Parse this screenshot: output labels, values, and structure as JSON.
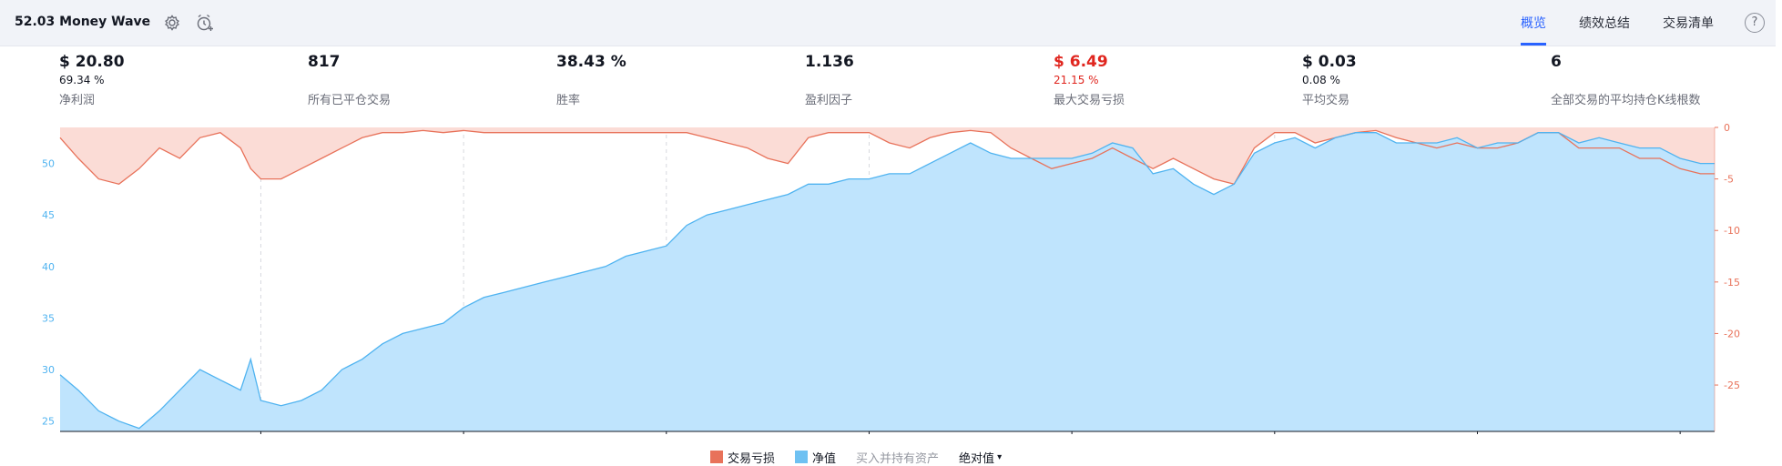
{
  "header": {
    "title": "52.03 Money Wave",
    "tabs": [
      "概览",
      "绩效总结",
      "交易清单"
    ],
    "active_tab": 0
  },
  "stats": [
    {
      "value": "$ 20.80",
      "sub": "69.34 %",
      "label": "净利润",
      "red": false
    },
    {
      "value": "817",
      "sub": "",
      "label": "所有已平仓交易",
      "red": false
    },
    {
      "value": "38.43 %",
      "sub": "",
      "label": "胜率",
      "red": false
    },
    {
      "value": "1.136",
      "sub": "",
      "label": "盈利因子",
      "red": false
    },
    {
      "value": "$ 6.49",
      "sub": "21.15 %",
      "label": "最大交易亏损",
      "red": true
    },
    {
      "value": "$ 0.03",
      "sub": "0.08 %",
      "label": "平均交易",
      "red": false
    },
    {
      "value": "6",
      "sub": "",
      "label": "全部交易的平均持仓K线根数",
      "red": false
    }
  ],
  "legend": {
    "drawdown": "交易亏损",
    "equity": "净值",
    "buyhold": "买入并持有资产",
    "mode": "绝对值"
  },
  "colors": {
    "accent": "#2962ff",
    "equity_line": "#4fb3f0",
    "equity_fill": "#bfe4fd",
    "drawdown_line": "#e8725a",
    "drawdown_fill": "#fbdcd6",
    "negative": "#e0261f"
  },
  "chart_data": {
    "type": "area",
    "x_ticks": [
      100,
      200,
      300,
      400,
      500,
      600,
      700,
      800
    ],
    "xlim": [
      1,
      817
    ],
    "left_axis": {
      "ticks": [
        25,
        30,
        35,
        40,
        45,
        50
      ],
      "ylim": [
        24,
        53.5
      ]
    },
    "right_axis": {
      "ticks": [
        0,
        -5,
        -10,
        -15,
        -20,
        -25
      ],
      "ylim": [
        -29.5,
        0
      ]
    },
    "series": [
      {
        "name": "净值",
        "axis": "left",
        "x": [
          1,
          10,
          20,
          30,
          40,
          50,
          60,
          70,
          80,
          90,
          95,
          100,
          110,
          120,
          130,
          140,
          150,
          160,
          170,
          180,
          190,
          200,
          210,
          220,
          230,
          240,
          250,
          260,
          270,
          280,
          290,
          300,
          310,
          320,
          330,
          340,
          350,
          360,
          370,
          380,
          390,
          400,
          410,
          420,
          430,
          440,
          450,
          460,
          470,
          480,
          490,
          500,
          510,
          520,
          530,
          540,
          550,
          560,
          570,
          580,
          590,
          600,
          610,
          620,
          630,
          640,
          650,
          660,
          670,
          680,
          690,
          700,
          710,
          720,
          730,
          740,
          750,
          760,
          770,
          780,
          790,
          800,
          810,
          817
        ],
        "values": [
          29.5,
          28,
          26,
          25,
          24.3,
          26,
          28,
          30,
          29,
          28,
          31,
          27,
          26.5,
          27,
          28,
          30,
          31,
          32.5,
          33.5,
          34,
          34.5,
          36,
          37,
          37.5,
          38,
          38.5,
          39,
          39.5,
          40,
          41,
          41.5,
          42,
          44,
          45,
          45.5,
          46,
          46.5,
          47,
          48,
          48,
          48.5,
          48.5,
          49,
          49,
          50,
          51,
          52,
          51,
          50.5,
          50.5,
          50.5,
          50.5,
          51,
          52,
          51.5,
          49,
          49.5,
          48,
          47,
          48,
          51,
          52,
          52.5,
          51.5,
          52.5,
          53,
          53,
          52,
          52,
          52,
          52.5,
          51.5,
          52,
          52,
          53,
          53,
          52,
          52.5,
          52,
          51.5,
          51.5,
          50.5,
          50,
          50
        ]
      },
      {
        "name": "交易亏损",
        "axis": "right",
        "x": [
          1,
          10,
          20,
          30,
          40,
          50,
          60,
          70,
          80,
          90,
          95,
          100,
          110,
          120,
          130,
          140,
          150,
          160,
          170,
          180,
          190,
          200,
          210,
          220,
          230,
          240,
          250,
          260,
          270,
          280,
          290,
          300,
          310,
          320,
          330,
          340,
          350,
          360,
          370,
          380,
          390,
          400,
          410,
          420,
          430,
          440,
          450,
          460,
          470,
          480,
          490,
          500,
          510,
          520,
          530,
          540,
          550,
          560,
          570,
          580,
          590,
          600,
          610,
          620,
          630,
          640,
          650,
          660,
          670,
          680,
          690,
          700,
          710,
          720,
          730,
          740,
          750,
          760,
          770,
          780,
          790,
          800,
          810,
          817
        ],
        "values": [
          -1,
          -3,
          -5,
          -5.5,
          -4,
          -2,
          -3,
          -1,
          -0.5,
          -2,
          -4,
          -5,
          -5,
          -4,
          -3,
          -2,
          -1,
          -0.5,
          -0.5,
          -0.3,
          -0.5,
          -0.3,
          -0.5,
          -0.5,
          -0.5,
          -0.5,
          -0.5,
          -0.5,
          -0.5,
          -0.5,
          -0.5,
          -0.5,
          -0.5,
          -1,
          -1.5,
          -2,
          -3,
          -3.5,
          -1,
          -0.5,
          -0.5,
          -0.5,
          -1.5,
          -2,
          -1,
          -0.5,
          -0.3,
          -0.5,
          -2,
          -3,
          -4,
          -3.5,
          -3,
          -2,
          -3,
          -4,
          -3,
          -4,
          -5,
          -5.5,
          -2,
          -0.5,
          -0.5,
          -1.5,
          -1,
          -0.5,
          -0.3,
          -1,
          -1.5,
          -2,
          -1.5,
          -2,
          -2,
          -1.5,
          -0.5,
          -0.5,
          -2,
          -2,
          -2,
          -3,
          -3,
          -4,
          -4.5,
          -4.5
        ]
      }
    ]
  }
}
